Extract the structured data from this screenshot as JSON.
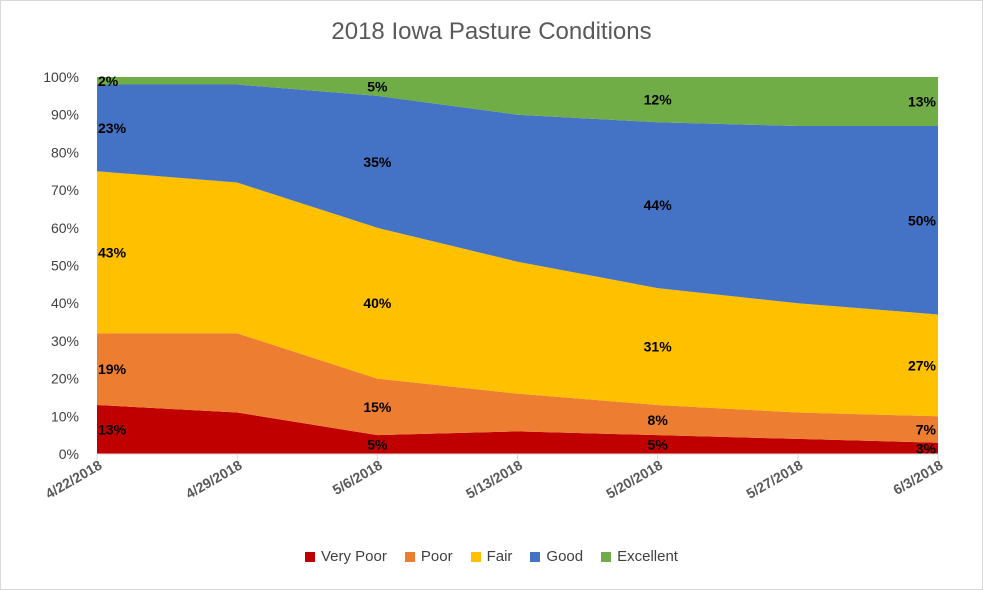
{
  "chart_data": {
    "type": "area",
    "stacked": true,
    "percent": true,
    "title": "2018 Iowa Pasture Conditions",
    "x": [
      "4/22/2018",
      "4/29/2018",
      "5/6/2018",
      "5/13/2018",
      "5/20/2018",
      "5/27/2018",
      "6/3/2018"
    ],
    "ylim": [
      0,
      100
    ],
    "yticks": [
      "0%",
      "10%",
      "20%",
      "30%",
      "40%",
      "50%",
      "60%",
      "70%",
      "80%",
      "90%",
      "100%"
    ],
    "grid": false,
    "legend_position": "bottom",
    "series": [
      {
        "name": "Very Poor",
        "color": "#C00000",
        "values": [
          13,
          11,
          5,
          6,
          5,
          4,
          3
        ]
      },
      {
        "name": "Poor",
        "color": "#ED7D31",
        "values": [
          19,
          21,
          15,
          10,
          8,
          7,
          7
        ]
      },
      {
        "name": "Fair",
        "color": "#FFC000",
        "values": [
          43,
          40,
          40,
          35,
          31,
          29,
          27
        ]
      },
      {
        "name": "Good",
        "color": "#4472C4",
        "values": [
          23,
          26,
          35,
          39,
          44,
          47,
          50
        ]
      },
      {
        "name": "Excellent",
        "color": "#70AD47",
        "values": [
          2,
          2,
          5,
          10,
          12,
          13,
          13
        ]
      }
    ],
    "data_labels": [
      {
        "series": 0,
        "point": 0,
        "text": "13%"
      },
      {
        "series": 0,
        "point": 2,
        "text": "5%"
      },
      {
        "series": 0,
        "point": 4,
        "text": "5%"
      },
      {
        "series": 0,
        "point": 6,
        "text": "3%"
      },
      {
        "series": 1,
        "point": 0,
        "text": "19%"
      },
      {
        "series": 1,
        "point": 2,
        "text": "15%"
      },
      {
        "series": 1,
        "point": 4,
        "text": "8%"
      },
      {
        "series": 1,
        "point": 6,
        "text": "7%"
      },
      {
        "series": 2,
        "point": 0,
        "text": "43%"
      },
      {
        "series": 2,
        "point": 2,
        "text": "40%"
      },
      {
        "series": 2,
        "point": 4,
        "text": "31%"
      },
      {
        "series": 2,
        "point": 6,
        "text": "27%"
      },
      {
        "series": 3,
        "point": 0,
        "text": "23%"
      },
      {
        "series": 3,
        "point": 2,
        "text": "35%"
      },
      {
        "series": 3,
        "point": 4,
        "text": "44%"
      },
      {
        "series": 3,
        "point": 6,
        "text": "50%"
      },
      {
        "series": 4,
        "point": 0,
        "text": "2%"
      },
      {
        "series": 4,
        "point": 2,
        "text": "5%"
      },
      {
        "series": 4,
        "point": 4,
        "text": "12%"
      },
      {
        "series": 4,
        "point": 6,
        "text": "13%"
      }
    ]
  }
}
